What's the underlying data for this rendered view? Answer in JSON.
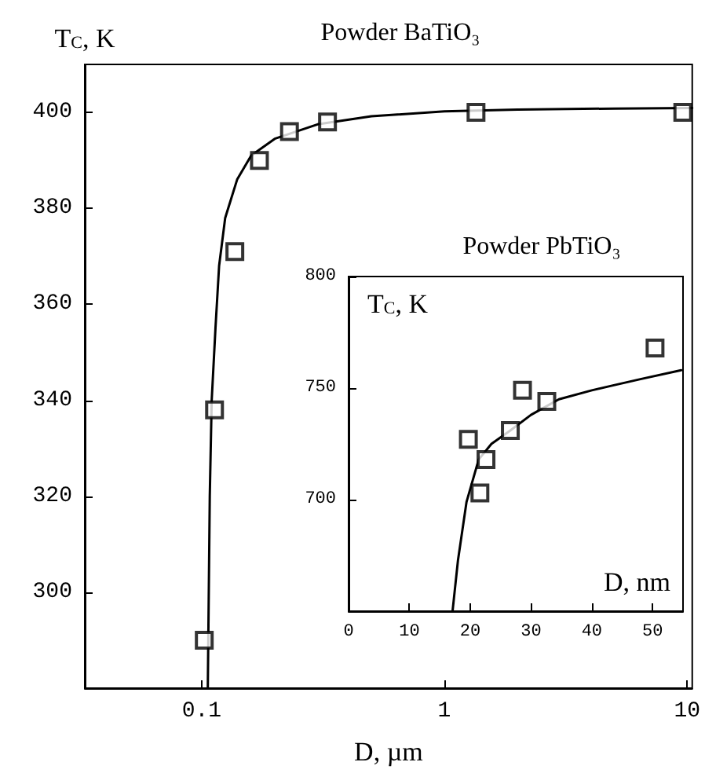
{
  "chart_data": [
    {
      "type": "scatter",
      "title": "Powder BaTiO₃",
      "xlabel": "D, µm",
      "ylabel": "T$_{C}$, K",
      "log": "x",
      "grid": false,
      "marker": "square",
      "xlim": [
        0.033,
        10.5
      ],
      "xticks": [
        0.1,
        1,
        10
      ],
      "ylim": [
        280,
        410
      ],
      "yticks": [
        300,
        320,
        340,
        360,
        380,
        400
      ],
      "series": [
        {
          "color": "#000000",
          "x": [
            0.1025,
            0.113,
            0.137,
            0.173,
            0.23,
            0.33,
            1.35,
            9.6
          ],
          "values": [
            290,
            338,
            371,
            390,
            396,
            398,
            400,
            400
          ]
        },
        {
          "type": "line",
          "marker": "none",
          "line_style": "solid",
          "color": "#000000",
          "x": [
            0.106,
            0.108,
            0.11,
            0.114,
            0.118,
            0.125,
            0.14,
            0.16,
            0.2,
            0.3,
            0.5,
            1,
            2,
            5,
            10.5
          ],
          "values": [
            280,
            320,
            340,
            355,
            368,
            378,
            386,
            391,
            394.5,
            397.5,
            399.2,
            400.2,
            400.6,
            400.8,
            400.9
          ]
        }
      ]
    },
    {
      "type": "scatter",
      "title": "Powder PbTiO₃",
      "xlabel": "D, nm",
      "ylabel": "T$_{C}$, K",
      "grid": false,
      "marker": "square",
      "xlim": [
        0,
        55
      ],
      "xticks": [
        0,
        10,
        20,
        30,
        40,
        50
      ],
      "ylim": [
        650,
        800
      ],
      "yticks": [
        700,
        750,
        800
      ],
      "series": [
        {
          "color": "#000000",
          "x": [
            19.7,
            21.6,
            22.6,
            26.6,
            28.6,
            32.6,
            50.4
          ],
          "values": [
            727,
            703,
            718,
            731,
            749,
            744,
            768
          ]
        },
        {
          "type": "line",
          "marker": "none",
          "line_style": "solid",
          "color": "#000000",
          "x": [
            17.1,
            18,
            19.4,
            21.4,
            23.5,
            26.6,
            30,
            34.6,
            40,
            43.2,
            48,
            54.7
          ],
          "values": [
            650,
            673,
            699,
            718,
            725,
            731,
            738,
            745,
            749,
            751,
            754,
            758
          ]
        }
      ]
    }
  ]
}
